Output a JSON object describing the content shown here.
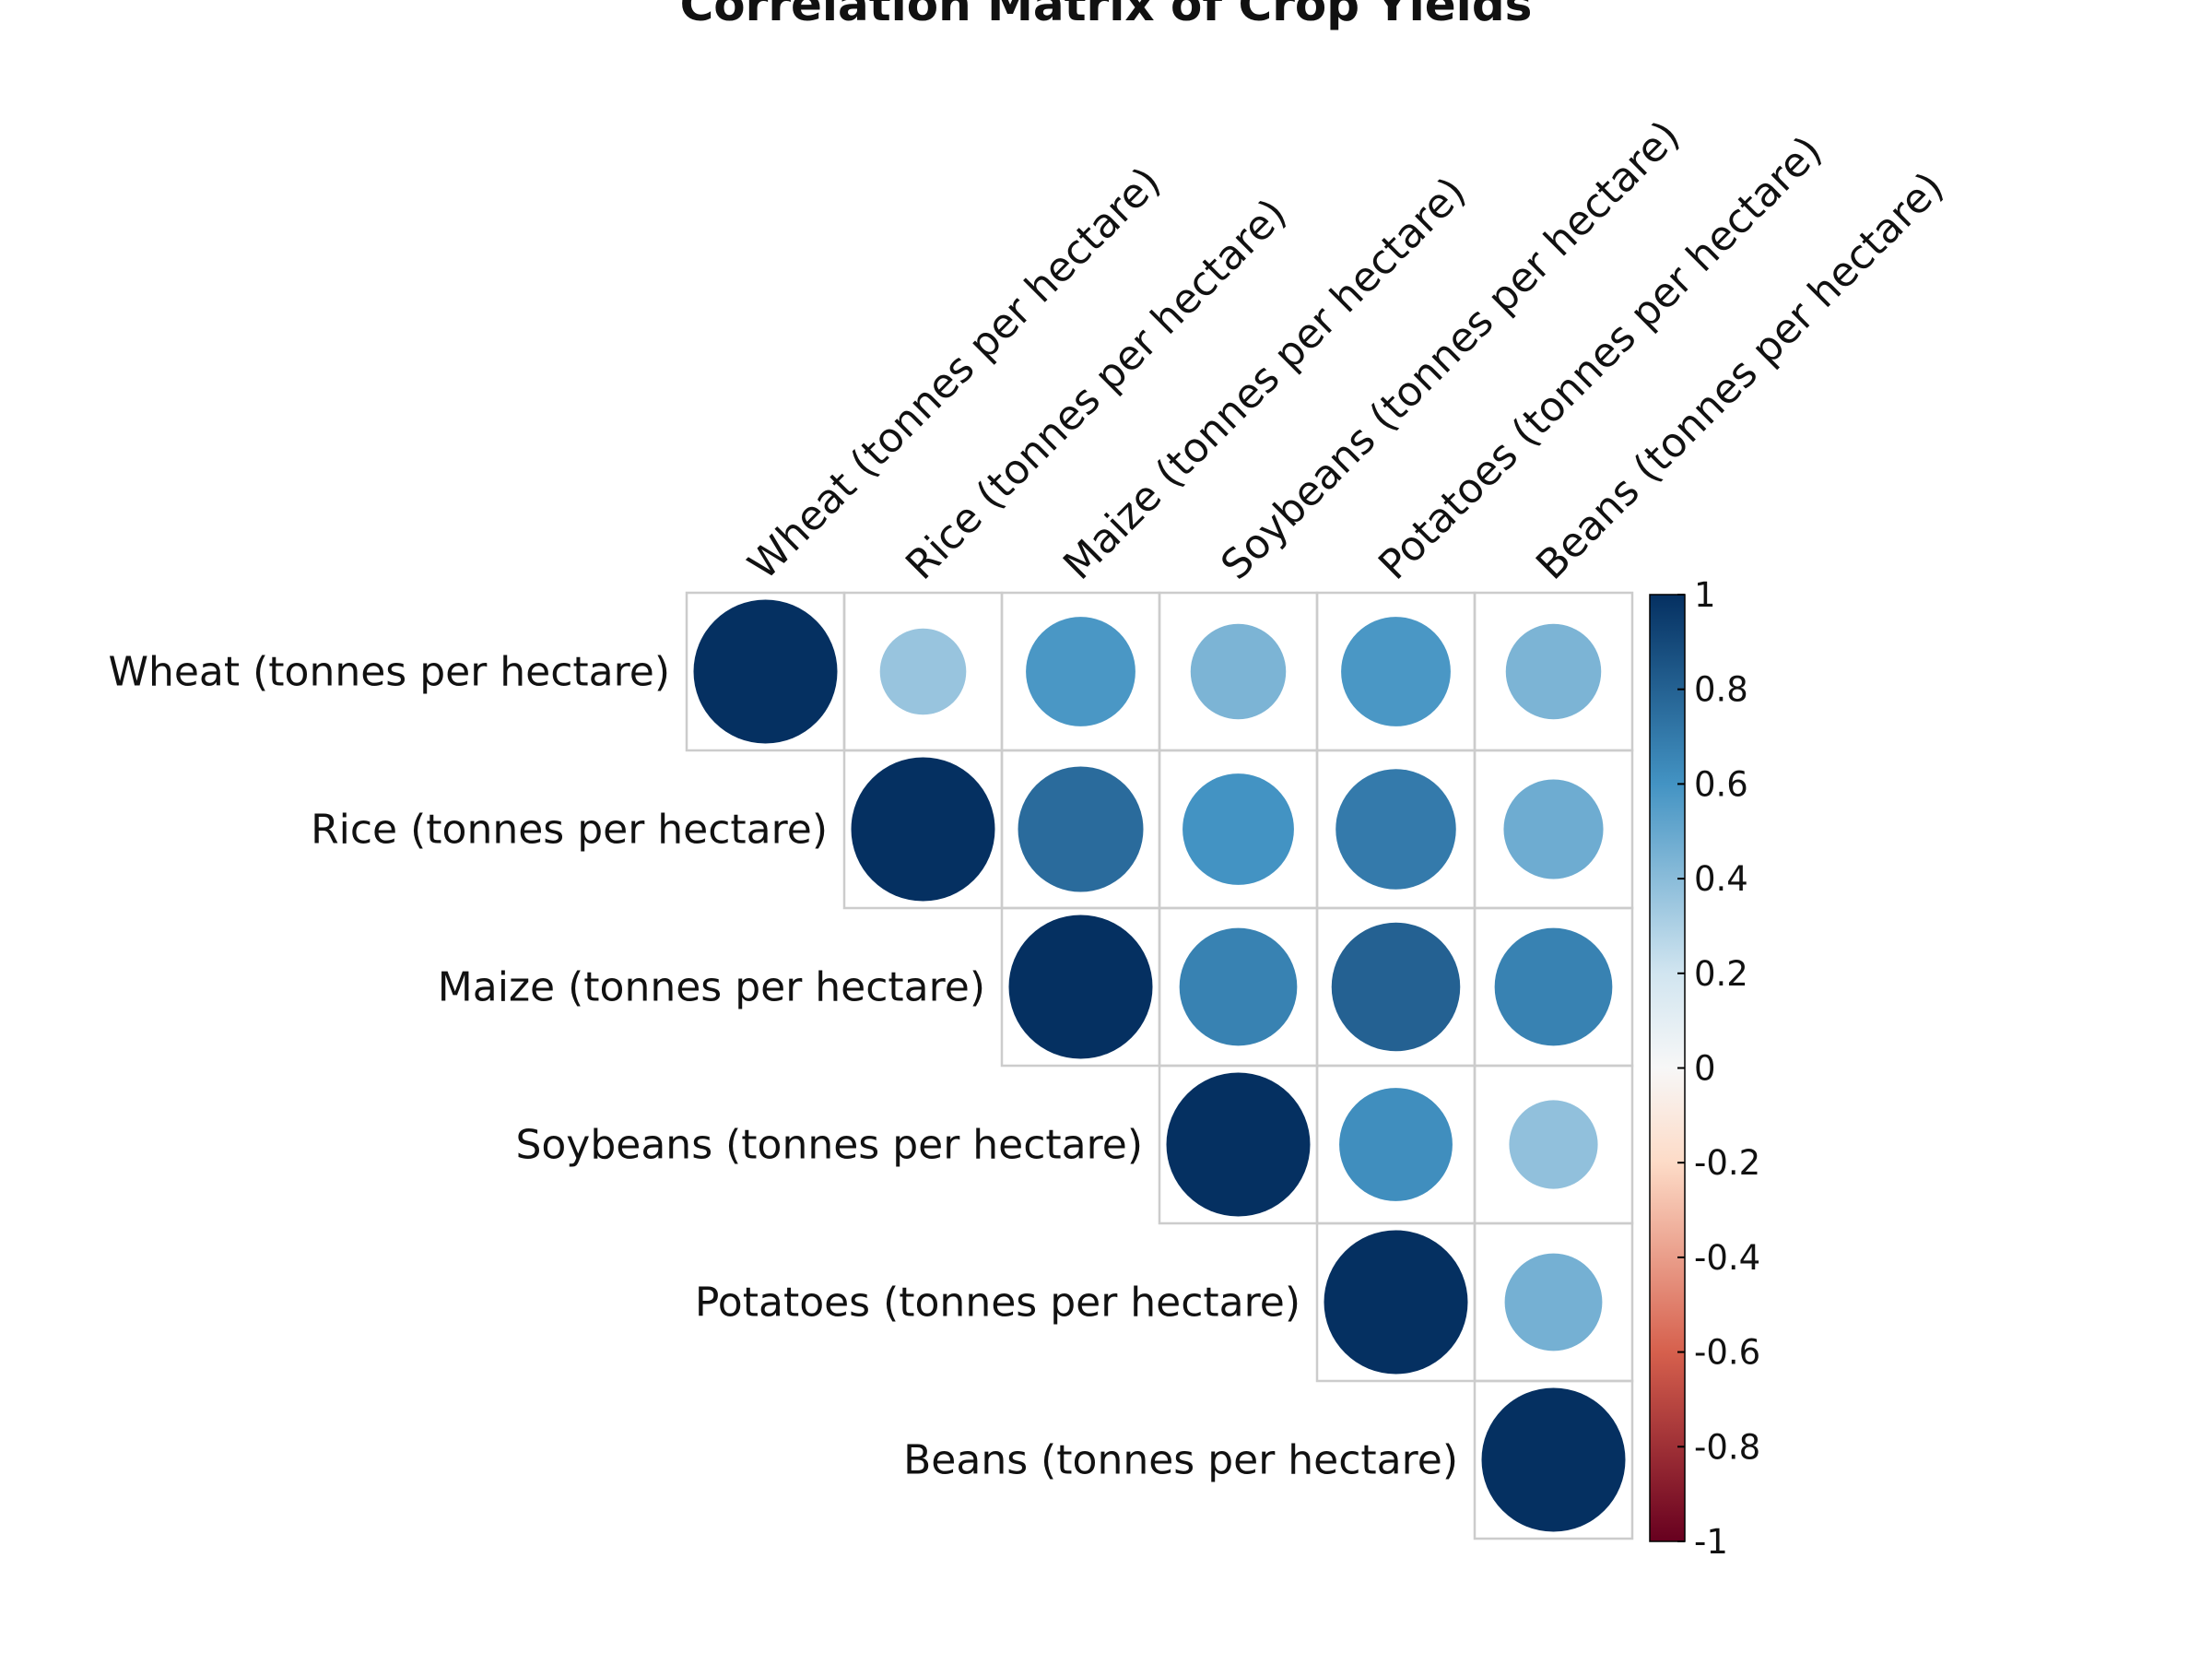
{
  "title": "Correlation Matrix of Crop Yields",
  "colors": {
    "neg1": "#67001f",
    "neg06": "#d6604d",
    "neg02": "#fddbc7",
    "zero": "#f7f7f7",
    "pos02": "#d1e5f0",
    "pos06": "#4393c3",
    "pos1": "#053061",
    "grid": "#cccccc",
    "outline": "#000000"
  },
  "chart_data": {
    "type": "heatmap",
    "style": "correlation-circles-upper-triangle",
    "title": "Correlation Matrix of Crop Yields",
    "variables": [
      "Wheat (tonnes per hectare)",
      "Rice (tonnes per hectare)",
      "Maize (tonnes per hectare)",
      "Soybeans (tonnes per hectare)",
      "Potatoes (tonnes per hectare)",
      "Beans (tonnes per hectare)"
    ],
    "matrix": [
      [
        1.0,
        0.36,
        0.58,
        0.44,
        0.58,
        0.44
      ],
      [
        0.36,
        1.0,
        0.76,
        0.6,
        0.7,
        0.48
      ],
      [
        0.58,
        0.76,
        1.0,
        0.67,
        0.8,
        0.67
      ],
      [
        0.44,
        0.6,
        0.67,
        1.0,
        0.62,
        0.38
      ],
      [
        0.58,
        0.7,
        0.8,
        0.62,
        1.0,
        0.46
      ],
      [
        0.44,
        0.48,
        0.67,
        0.38,
        0.46,
        1.0
      ]
    ],
    "colorbar": {
      "range": [
        -1,
        1
      ],
      "tick_values": [
        1,
        0.8,
        0.6,
        0.4,
        0.2,
        0,
        -0.2,
        -0.4,
        -0.6,
        -0.8,
        -1
      ],
      "tick_labels": [
        "1",
        "0.8",
        "0.6",
        "0.4",
        "0.2",
        "0",
        "-0.2",
        "-0.4",
        "-0.6",
        "-0.8",
        "-1"
      ]
    }
  }
}
